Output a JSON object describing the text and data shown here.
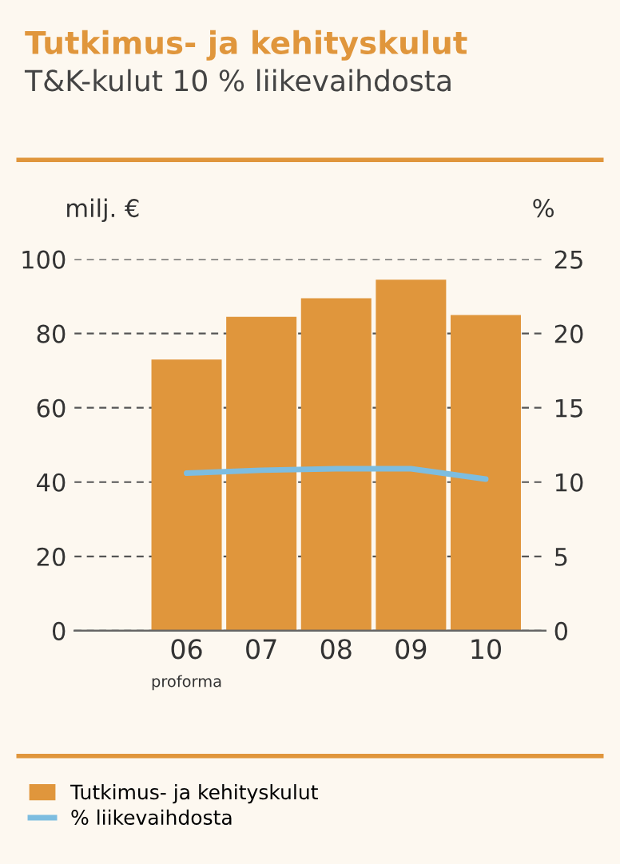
{
  "chart_data": {
    "type": "bar",
    "title": "Tutkimus- ja kehityskulut",
    "subtitle": "T&K-kulut 10 % liikevaihdosta",
    "ylabel": "milj. €",
    "y2label": "%",
    "categories": [
      "06",
      "07",
      "08",
      "09",
      "10"
    ],
    "series": [
      {
        "name": "Tutkimus- ja kehityskulut",
        "color": "#e0963c",
        "values": [
          73,
          84.5,
          89.5,
          94.5,
          85
        ]
      },
      {
        "name": "% liikevaihdosta",
        "type": "line",
        "axis": "y2",
        "color": "#7dbde0",
        "values": [
          10.6,
          10.8,
          10.9,
          10.9,
          10.2
        ]
      }
    ],
    "ylim": [
      0,
      100
    ],
    "yticks": [
      0,
      20,
      40,
      60,
      80,
      100
    ],
    "y2lim": [
      0,
      25
    ],
    "y2ticks": [
      0,
      5,
      10,
      15,
      20,
      25
    ],
    "annotations": [
      "proforma"
    ],
    "grid": "y",
    "legend": "bottom"
  }
}
